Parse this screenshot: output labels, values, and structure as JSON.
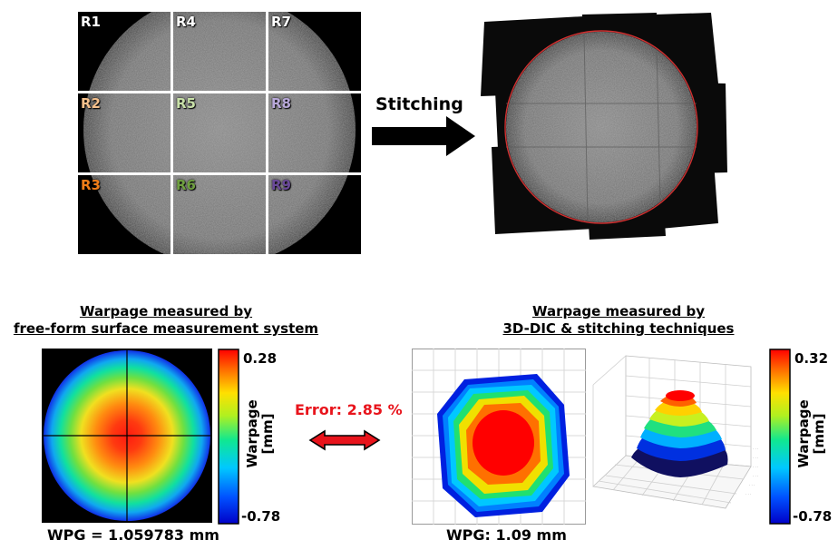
{
  "tiles": [
    {
      "label": "R1",
      "color": "#ffffff"
    },
    {
      "label": "R4",
      "color": "#ffffff"
    },
    {
      "label": "R7",
      "color": "#ffffff"
    },
    {
      "label": "R2",
      "color": "#f4c08c"
    },
    {
      "label": "R5",
      "color": "#c8e0a8"
    },
    {
      "label": "R8",
      "color": "#b8a8d8"
    },
    {
      "label": "R3",
      "color": "#f07d18"
    },
    {
      "label": "R6",
      "color": "#6fa040"
    },
    {
      "label": "R9",
      "color": "#6a4a98"
    }
  ],
  "stitching_label": "Stitching",
  "left_panel": {
    "heading_line1": "Warpage measured by",
    "heading_line2": "free-form surface measurement system",
    "colorbar_max": "0.28",
    "colorbar_min": "-0.78",
    "colorbar_title_1": "Warpage",
    "colorbar_title_2": "[mm]",
    "wpg": "WPG = 1.059783 mm"
  },
  "error_label": "Error: 2.85 %",
  "right_panel": {
    "heading_line1": "Warpage measured by",
    "heading_line2": "3D-DIC & stitching techniques",
    "colorbar_max": "0.32",
    "colorbar_min": "-0.78",
    "colorbar_title_1": "Warpage",
    "colorbar_title_2": "[mm]",
    "wpg": "WPG: 1.09 mm"
  },
  "colors": {
    "arrow": "#000000",
    "error_text": "#e8141c",
    "double_arrow": "#e8141c",
    "stitch_circle": "#d03030"
  }
}
